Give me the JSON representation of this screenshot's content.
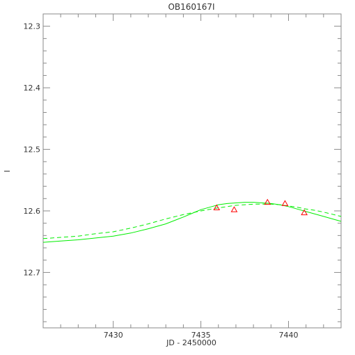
{
  "chart_data": {
    "type": "line",
    "title": "OB160167I",
    "xlabel": "JD - 2450000",
    "ylabel": "I",
    "xlim": [
      7426.0,
      7443.0
    ],
    "ylim": [
      12.79,
      12.28
    ],
    "y_inverted": true,
    "grid": false,
    "x_ticks": [
      7430,
      7435,
      7440
    ],
    "x_tick_labels": [
      "7430",
      "7435",
      "7440"
    ],
    "y_ticks": [
      12.3,
      12.4,
      12.5,
      12.6,
      12.7
    ],
    "y_tick_labels": [
      "12.3",
      "12.4",
      "12.5",
      "12.6",
      "12.7"
    ],
    "series": [
      {
        "style": "solid",
        "color": "#00ee00",
        "x": [
          7426.0,
          7427.0,
          7428.0,
          7429.0,
          7430.0,
          7431.0,
          7432.0,
          7433.0,
          7434.0,
          7434.5,
          7435.0,
          7435.5,
          7436.0,
          7436.5,
          7437.0,
          7437.5,
          7438.0,
          7438.5,
          7439.0,
          7439.5,
          7440.0,
          7440.5,
          7441.0,
          7441.5,
          7442.0,
          7443.0
        ],
        "y": [
          12.651,
          12.649,
          12.647,
          12.644,
          12.641,
          12.636,
          12.629,
          12.621,
          12.61,
          12.604,
          12.598,
          12.594,
          12.59,
          12.588,
          12.587,
          12.586,
          12.586,
          12.587,
          12.588,
          12.59,
          12.593,
          12.597,
          12.601,
          12.605,
          12.609,
          12.617
        ]
      },
      {
        "style": "dashed",
        "color": "#00ee00",
        "x": [
          7426.0,
          7427.0,
          7428.0,
          7429.0,
          7430.0,
          7431.0,
          7432.0,
          7433.0,
          7434.0,
          7435.0,
          7436.0,
          7436.5,
          7437.0,
          7437.5,
          7438.0,
          7438.5,
          7439.0,
          7439.5,
          7440.0,
          7440.5,
          7441.0,
          7441.5,
          7442.0,
          7443.0
        ],
        "y": [
          12.645,
          12.643,
          12.641,
          12.637,
          12.634,
          12.628,
          12.621,
          12.613,
          12.606,
          12.6,
          12.595,
          12.593,
          12.591,
          12.59,
          12.589,
          12.589,
          12.589,
          12.59,
          12.592,
          12.594,
          12.597,
          12.599,
          12.602,
          12.609
        ]
      },
      {
        "style": "markers",
        "marker": "triangle",
        "color": "#ff0000",
        "x": [
          7435.9,
          7436.9,
          7438.8,
          7439.8,
          7440.9
        ],
        "y": [
          12.595,
          12.598,
          12.586,
          12.588,
          12.603
        ]
      }
    ]
  }
}
